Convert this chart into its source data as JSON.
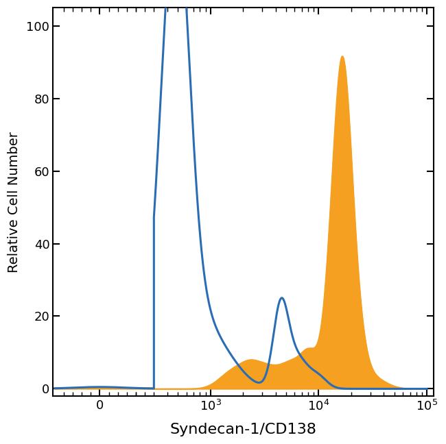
{
  "xlabel": "Syndecan-1/CD138",
  "ylabel": "Relative Cell Number",
  "ylim": [
    -2,
    105
  ],
  "yticks": [
    0,
    20,
    40,
    60,
    80,
    100
  ],
  "blue_color": "#2a6db5",
  "orange_color": "#f5a020",
  "blue_linewidth": 2.2,
  "orange_linewidth": 1.0,
  "xlabel_fontsize": 16,
  "ylabel_fontsize": 14,
  "tick_fontsize": 13,
  "background_color": "#ffffff",
  "linthresh": 300,
  "linscale": 0.45
}
